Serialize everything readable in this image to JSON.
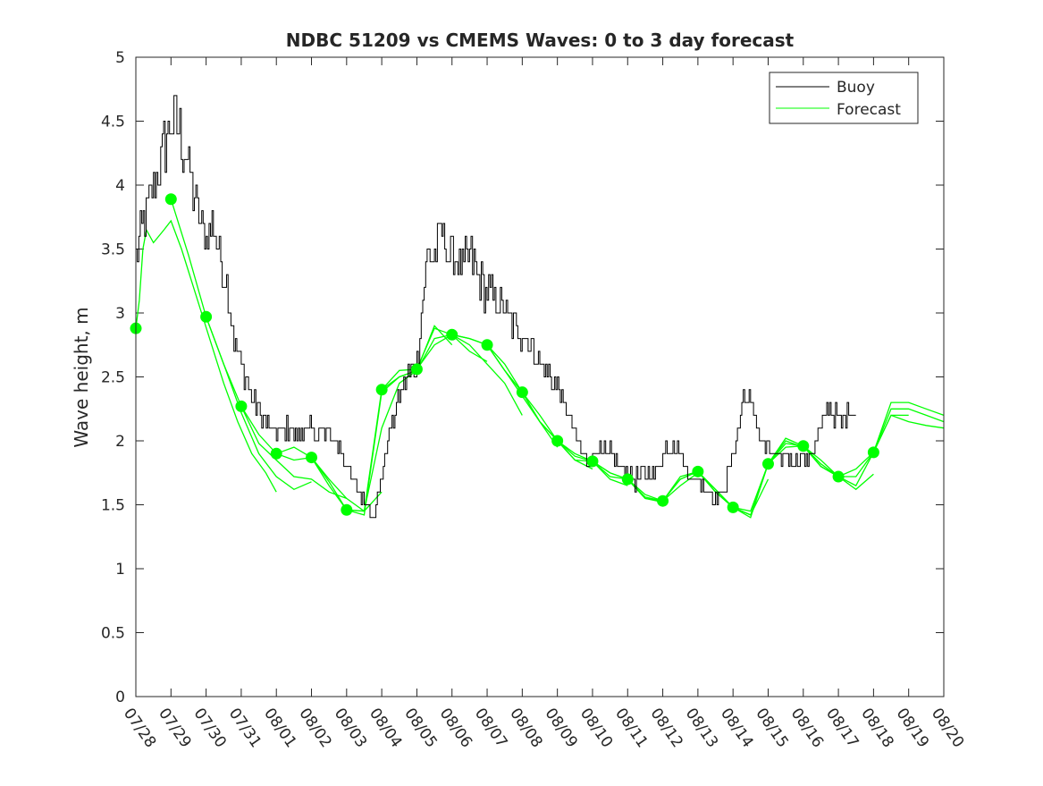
{
  "chart_data": {
    "type": "line",
    "title": "NDBC 51209 vs CMEMS Waves: 0 to 3 day forecast",
    "xlabel": "",
    "ylabel": "Wave height, m",
    "ylim": [
      0,
      5
    ],
    "xlim": [
      0,
      23
    ],
    "yticks": [
      0,
      0.5,
      1,
      1.5,
      2,
      2.5,
      3,
      3.5,
      4,
      4.5,
      5
    ],
    "ytick_labels": [
      "0",
      "0.5",
      "1",
      "1.5",
      "2",
      "2.5",
      "3",
      "3.5",
      "4",
      "4.5",
      "5"
    ],
    "xtick_labels": [
      "07/28",
      "07/29",
      "07/30",
      "07/31",
      "08/01",
      "08/02",
      "08/03",
      "08/04",
      "08/05",
      "08/06",
      "08/07",
      "08/08",
      "08/09",
      "08/10",
      "08/11",
      "08/12",
      "08/13",
      "08/14",
      "08/15",
      "08/16",
      "08/17",
      "08/18",
      "08/19",
      "08/20"
    ],
    "legend": {
      "position": "top-right",
      "entries": [
        "Buoy",
        "Forecast"
      ]
    },
    "colors": {
      "buoy": "#000000",
      "forecast": "#00ff00",
      "axis": "#262626"
    },
    "buoy_trend": [
      [
        0.0,
        3.45
      ],
      [
        0.3,
        3.8
      ],
      [
        0.6,
        4.05
      ],
      [
        0.8,
        4.3
      ],
      [
        1.0,
        4.5
      ],
      [
        1.2,
        4.45
      ],
      [
        1.4,
        4.25
      ],
      [
        1.6,
        4.0
      ],
      [
        1.8,
        3.75
      ],
      [
        2.0,
        3.6
      ],
      [
        2.2,
        3.7
      ],
      [
        2.4,
        3.45
      ],
      [
        2.6,
        3.2
      ],
      [
        2.8,
        2.8
      ],
      [
        3.0,
        2.6
      ],
      [
        3.2,
        2.45
      ],
      [
        3.4,
        2.3
      ],
      [
        3.6,
        2.2
      ],
      [
        3.8,
        2.1
      ],
      [
        4.0,
        2.05
      ],
      [
        4.3,
        2.1
      ],
      [
        4.6,
        2.05
      ],
      [
        4.9,
        2.1
      ],
      [
        5.2,
        2.05
      ],
      [
        5.5,
        2.05
      ],
      [
        5.8,
        1.95
      ],
      [
        6.0,
        1.8
      ],
      [
        6.2,
        1.65
      ],
      [
        6.4,
        1.55
      ],
      [
        6.6,
        1.5
      ],
      [
        6.8,
        1.45
      ],
      [
        7.0,
        1.75
      ],
      [
        7.2,
        2.05
      ],
      [
        7.4,
        2.25
      ],
      [
        7.6,
        2.4
      ],
      [
        7.8,
        2.55
      ],
      [
        8.0,
        2.6
      ],
      [
        8.15,
        3.1
      ],
      [
        8.3,
        3.5
      ],
      [
        8.5,
        3.45
      ],
      [
        8.7,
        3.65
      ],
      [
        8.9,
        3.45
      ],
      [
        9.1,
        3.4
      ],
      [
        9.3,
        3.35
      ],
      [
        9.5,
        3.45
      ],
      [
        9.7,
        3.3
      ],
      [
        9.9,
        3.2
      ],
      [
        10.1,
        3.15
      ],
      [
        10.3,
        3.1
      ],
      [
        10.5,
        3.0
      ],
      [
        10.7,
        2.9
      ],
      [
        10.9,
        2.85
      ],
      [
        11.1,
        2.8
      ],
      [
        11.3,
        2.7
      ],
      [
        11.5,
        2.6
      ],
      [
        11.7,
        2.55
      ],
      [
        11.9,
        2.45
      ],
      [
        12.1,
        2.35
      ],
      [
        12.3,
        2.2
      ],
      [
        12.5,
        2.05
      ],
      [
        12.7,
        1.9
      ],
      [
        12.9,
        1.85
      ],
      [
        13.1,
        1.95
      ],
      [
        13.3,
        1.9
      ],
      [
        13.5,
        1.9
      ],
      [
        13.7,
        1.85
      ],
      [
        13.9,
        1.75
      ],
      [
        14.1,
        1.7
      ],
      [
        14.3,
        1.7
      ],
      [
        14.5,
        1.75
      ],
      [
        14.7,
        1.72
      ],
      [
        14.9,
        1.8
      ],
      [
        15.1,
        1.95
      ],
      [
        15.3,
        2.0
      ],
      [
        15.5,
        1.9
      ],
      [
        15.7,
        1.75
      ],
      [
        15.9,
        1.7
      ],
      [
        16.1,
        1.68
      ],
      [
        16.3,
        1.62
      ],
      [
        16.5,
        1.55
      ],
      [
        16.7,
        1.6
      ],
      [
        16.9,
        1.75
      ],
      [
        17.1,
        2.0
      ],
      [
        17.3,
        2.35
      ],
      [
        17.5,
        2.3
      ],
      [
        17.7,
        2.1
      ],
      [
        17.9,
        1.95
      ],
      [
        18.1,
        1.9
      ],
      [
        18.3,
        1.85
      ],
      [
        18.5,
        1.9
      ],
      [
        18.7,
        1.85
      ],
      [
        18.9,
        1.9
      ],
      [
        19.1,
        1.85
      ],
      [
        19.3,
        1.95
      ],
      [
        19.5,
        2.1
      ],
      [
        19.7,
        2.25
      ],
      [
        19.9,
        2.2
      ],
      [
        20.1,
        2.15
      ],
      [
        20.3,
        2.25
      ],
      [
        20.5,
        2.2
      ]
    ],
    "forecast_runs": [
      [
        [
          0.0,
          2.88
        ],
        [
          0.1,
          3.1
        ],
        [
          0.2,
          3.5
        ],
        [
          0.3,
          3.65
        ],
        [
          0.5,
          3.55
        ],
        [
          0.8,
          3.65
        ],
        [
          1.0,
          3.72
        ],
        [
          1.3,
          3.5
        ],
        [
          1.7,
          3.15
        ],
        [
          2.1,
          2.8
        ],
        [
          2.5,
          2.45
        ],
        [
          2.9,
          2.15
        ],
        [
          3.3,
          1.9
        ],
        [
          3.7,
          1.75
        ],
        [
          4.0,
          1.6
        ]
      ],
      [
        [
          1.0,
          3.89
        ],
        [
          1.5,
          3.45
        ],
        [
          2.0,
          2.97
        ],
        [
          2.5,
          2.6
        ],
        [
          3.0,
          2.22
        ],
        [
          3.5,
          1.9
        ],
        [
          4.0,
          1.72
        ],
        [
          4.5,
          1.62
        ],
        [
          5.0,
          1.68
        ]
      ],
      [
        [
          2.0,
          2.97
        ],
        [
          2.5,
          2.6
        ],
        [
          3.0,
          2.27
        ],
        [
          3.5,
          1.98
        ],
        [
          4.0,
          1.85
        ],
        [
          4.5,
          1.72
        ],
        [
          5.0,
          1.7
        ],
        [
          5.5,
          1.6
        ],
        [
          6.0,
          1.55
        ]
      ],
      [
        [
          3.0,
          2.27
        ],
        [
          3.5,
          2.05
        ],
        [
          4.0,
          1.9
        ],
        [
          4.5,
          1.95
        ],
        [
          5.0,
          1.87
        ],
        [
          5.5,
          1.7
        ],
        [
          6.0,
          1.55
        ],
        [
          6.5,
          1.45
        ],
        [
          7.0,
          1.6
        ]
      ],
      [
        [
          4.0,
          1.9
        ],
        [
          4.5,
          1.85
        ],
        [
          5.0,
          1.87
        ],
        [
          5.5,
          1.65
        ],
        [
          6.0,
          1.46
        ],
        [
          6.5,
          1.45
        ],
        [
          7.0,
          2.1
        ],
        [
          7.5,
          2.45
        ],
        [
          8.0,
          2.55
        ]
      ],
      [
        [
          5.0,
          1.87
        ],
        [
          5.5,
          1.68
        ],
        [
          6.0,
          1.46
        ],
        [
          6.5,
          1.42
        ],
        [
          7.0,
          2.38
        ],
        [
          7.5,
          2.5
        ],
        [
          8.0,
          2.55
        ],
        [
          8.5,
          2.9
        ],
        [
          9.0,
          2.75
        ]
      ],
      [
        [
          6.0,
          1.46
        ],
        [
          6.5,
          1.45
        ],
        [
          7.0,
          2.4
        ],
        [
          7.5,
          2.5
        ],
        [
          8.0,
          2.55
        ],
        [
          8.5,
          2.8
        ],
        [
          9.0,
          2.83
        ],
        [
          9.5,
          2.7
        ],
        [
          10.0,
          2.62
        ]
      ],
      [
        [
          7.0,
          2.4
        ],
        [
          7.5,
          2.55
        ],
        [
          8.0,
          2.56
        ],
        [
          8.5,
          2.75
        ],
        [
          9.0,
          2.83
        ],
        [
          9.5,
          2.75
        ],
        [
          10.0,
          2.6
        ],
        [
          10.5,
          2.45
        ],
        [
          11.0,
          2.2
        ]
      ],
      [
        [
          8.0,
          2.56
        ],
        [
          8.5,
          2.88
        ],
        [
          9.0,
          2.83
        ],
        [
          9.5,
          2.8
        ],
        [
          10.0,
          2.75
        ],
        [
          10.5,
          2.55
        ],
        [
          11.0,
          2.35
        ],
        [
          11.5,
          2.15
        ],
        [
          12.0,
          1.95
        ]
      ],
      [
        [
          9.0,
          2.83
        ],
        [
          9.5,
          2.8
        ],
        [
          10.0,
          2.75
        ],
        [
          10.5,
          2.6
        ],
        [
          11.0,
          2.38
        ],
        [
          11.5,
          2.15
        ],
        [
          12.0,
          2.0
        ],
        [
          12.5,
          1.85
        ],
        [
          13.0,
          1.78
        ]
      ],
      [
        [
          10.0,
          2.75
        ],
        [
          10.5,
          2.55
        ],
        [
          11.0,
          2.38
        ],
        [
          11.5,
          2.2
        ],
        [
          12.0,
          2.0
        ],
        [
          12.5,
          1.85
        ],
        [
          13.0,
          1.84
        ],
        [
          13.5,
          1.7
        ],
        [
          14.0,
          1.65
        ]
      ],
      [
        [
          11.0,
          2.38
        ],
        [
          11.5,
          2.15
        ],
        [
          12.0,
          2.0
        ],
        [
          12.5,
          1.9
        ],
        [
          13.0,
          1.84
        ],
        [
          13.5,
          1.75
        ],
        [
          14.0,
          1.7
        ],
        [
          14.5,
          1.55
        ],
        [
          15.0,
          1.52
        ]
      ],
      [
        [
          12.0,
          2.0
        ],
        [
          12.5,
          1.88
        ],
        [
          13.0,
          1.84
        ],
        [
          13.5,
          1.72
        ],
        [
          14.0,
          1.7
        ],
        [
          14.5,
          1.56
        ],
        [
          15.0,
          1.53
        ],
        [
          15.5,
          1.65
        ],
        [
          16.0,
          1.75
        ]
      ],
      [
        [
          13.0,
          1.84
        ],
        [
          13.5,
          1.75
        ],
        [
          14.0,
          1.7
        ],
        [
          14.5,
          1.55
        ],
        [
          15.0,
          1.53
        ],
        [
          15.5,
          1.7
        ],
        [
          16.0,
          1.76
        ],
        [
          16.5,
          1.6
        ],
        [
          17.0,
          1.48
        ]
      ],
      [
        [
          14.0,
          1.7
        ],
        [
          14.5,
          1.58
        ],
        [
          15.0,
          1.53
        ],
        [
          15.5,
          1.72
        ],
        [
          16.0,
          1.76
        ],
        [
          16.5,
          1.62
        ],
        [
          17.0,
          1.48
        ],
        [
          17.5,
          1.42
        ],
        [
          18.0,
          1.7
        ]
      ],
      [
        [
          15.0,
          1.53
        ],
        [
          15.5,
          1.7
        ],
        [
          16.0,
          1.76
        ],
        [
          16.5,
          1.6
        ],
        [
          17.0,
          1.48
        ],
        [
          17.5,
          1.45
        ],
        [
          18.0,
          1.82
        ],
        [
          18.5,
          2.0
        ],
        [
          19.0,
          1.95
        ]
      ],
      [
        [
          16.0,
          1.76
        ],
        [
          16.5,
          1.62
        ],
        [
          17.0,
          1.48
        ],
        [
          17.5,
          1.4
        ],
        [
          18.0,
          1.82
        ],
        [
          18.5,
          1.95
        ],
        [
          19.0,
          1.96
        ],
        [
          19.5,
          1.8
        ],
        [
          20.0,
          1.72
        ]
      ],
      [
        [
          17.0,
          1.48
        ],
        [
          17.5,
          1.42
        ],
        [
          18.0,
          1.82
        ],
        [
          18.5,
          1.98
        ],
        [
          19.0,
          1.96
        ],
        [
          19.5,
          1.8
        ],
        [
          20.0,
          1.72
        ],
        [
          20.5,
          1.62
        ],
        [
          21.0,
          1.74
        ]
      ],
      [
        [
          18.0,
          1.82
        ],
        [
          18.5,
          2.02
        ],
        [
          19.0,
          1.96
        ],
        [
          19.5,
          1.82
        ],
        [
          20.0,
          1.72
        ],
        [
          20.5,
          1.65
        ],
        [
          21.0,
          1.91
        ],
        [
          21.5,
          2.2
        ],
        [
          22.0,
          2.2
        ]
      ],
      [
        [
          19.0,
          1.96
        ],
        [
          19.5,
          1.85
        ],
        [
          20.0,
          1.72
        ],
        [
          20.5,
          1.72
        ],
        [
          21.0,
          1.91
        ],
        [
          21.5,
          2.25
        ],
        [
          22.0,
          2.25
        ],
        [
          22.5,
          2.2
        ],
        [
          23.0,
          2.15
        ]
      ],
      [
        [
          20.0,
          1.72
        ],
        [
          20.5,
          1.78
        ],
        [
          21.0,
          1.91
        ],
        [
          21.5,
          2.3
        ],
        [
          22.0,
          2.3
        ],
        [
          22.5,
          2.25
        ],
        [
          23.0,
          2.2
        ]
      ],
      [
        [
          21.0,
          1.91
        ],
        [
          21.5,
          2.2
        ],
        [
          22.0,
          2.15
        ],
        [
          22.5,
          2.12
        ],
        [
          23.0,
          2.1
        ]
      ]
    ],
    "forecast_markers": [
      [
        0,
        2.88
      ],
      [
        1,
        3.89
      ],
      [
        2,
        2.97
      ],
      [
        3,
        2.27
      ],
      [
        4,
        1.9
      ],
      [
        5,
        1.87
      ],
      [
        6,
        1.46
      ],
      [
        7,
        2.4
      ],
      [
        8,
        2.56
      ],
      [
        9,
        2.83
      ],
      [
        10,
        2.75
      ],
      [
        11,
        2.38
      ],
      [
        12,
        2.0
      ],
      [
        13,
        1.84
      ],
      [
        14,
        1.7
      ],
      [
        15,
        1.53
      ],
      [
        16,
        1.76
      ],
      [
        17,
        1.48
      ],
      [
        18,
        1.82
      ],
      [
        19,
        1.96
      ],
      [
        20,
        1.72
      ],
      [
        21,
        1.91
      ]
    ]
  }
}
